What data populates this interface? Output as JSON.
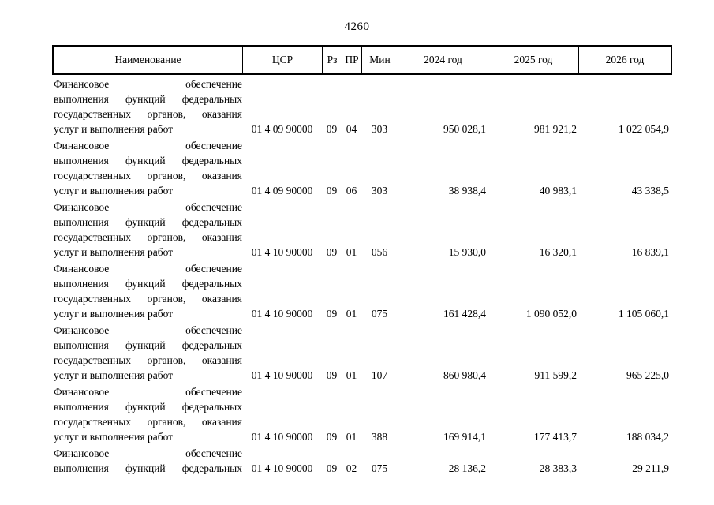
{
  "page": {
    "number": "4260"
  },
  "colors": {
    "ink": "#000000",
    "paper": "#ffffff"
  },
  "table": {
    "headers": {
      "name": "Наименование",
      "csr": "ЦСР",
      "rz": "Рз",
      "pr": "ПР",
      "min": "Мин",
      "y2024": "2024 год",
      "y2025": "2025 год",
      "y2026": "2026 год"
    },
    "rows": [
      {
        "name_lines": [
          "Финансовое обеспечение",
          "выполнения функций федеральных",
          "государственных органов, оказания",
          "услуг и выполнения работ"
        ],
        "last_line_justified": false,
        "csr": "01 4 09 90000",
        "rz": "09",
        "pr": "04",
        "min": "303",
        "y2024": "950 028,1",
        "y2025": "981 921,2",
        "y2026": "1 022 054,9"
      },
      {
        "name_lines": [
          "Финансовое обеспечение",
          "выполнения функций федеральных",
          "государственных органов, оказания",
          "услуг и выполнения работ"
        ],
        "last_line_justified": false,
        "csr": "01 4 09 90000",
        "rz": "09",
        "pr": "06",
        "min": "303",
        "y2024": "38 938,4",
        "y2025": "40 983,1",
        "y2026": "43 338,5"
      },
      {
        "name_lines": [
          "Финансовое обеспечение",
          "выполнения функций федеральных",
          "государственных органов, оказания",
          "услуг и выполнения работ"
        ],
        "last_line_justified": false,
        "csr": "01 4 10 90000",
        "rz": "09",
        "pr": "01",
        "min": "056",
        "y2024": "15 930,0",
        "y2025": "16 320,1",
        "y2026": "16 839,1"
      },
      {
        "name_lines": [
          "Финансовое обеспечение",
          "выполнения функций федеральных",
          "государственных органов, оказания",
          "услуг и выполнения работ"
        ],
        "last_line_justified": false,
        "csr": "01 4 10 90000",
        "rz": "09",
        "pr": "01",
        "min": "075",
        "y2024": "161 428,4",
        "y2025": "1 090 052,0",
        "y2026": "1 105 060,1"
      },
      {
        "name_lines": [
          "Финансовое обеспечение",
          "выполнения функций федеральных",
          "государственных органов, оказания",
          "услуг и выполнения работ"
        ],
        "last_line_justified": false,
        "csr": "01 4 10 90000",
        "rz": "09",
        "pr": "01",
        "min": "107",
        "y2024": "860 980,4",
        "y2025": "911 599,2",
        "y2026": "965 225,0"
      },
      {
        "name_lines": [
          "Финансовое обеспечение",
          "выполнения функций федеральных",
          "государственных органов, оказания",
          "услуг и выполнения работ"
        ],
        "last_line_justified": false,
        "csr": "01 4 10 90000",
        "rz": "09",
        "pr": "01",
        "min": "388",
        "y2024": "169 914,1",
        "y2025": "177 413,7",
        "y2026": "188 034,2"
      },
      {
        "name_lines": [
          "Финансовое обеспечение",
          "выполнения функций федеральных"
        ],
        "last_line_justified": true,
        "csr": "01 4 10 90000",
        "rz": "09",
        "pr": "02",
        "min": "075",
        "y2024": "28 136,2",
        "y2025": "28 383,3",
        "y2026": "29 211,9"
      }
    ]
  }
}
